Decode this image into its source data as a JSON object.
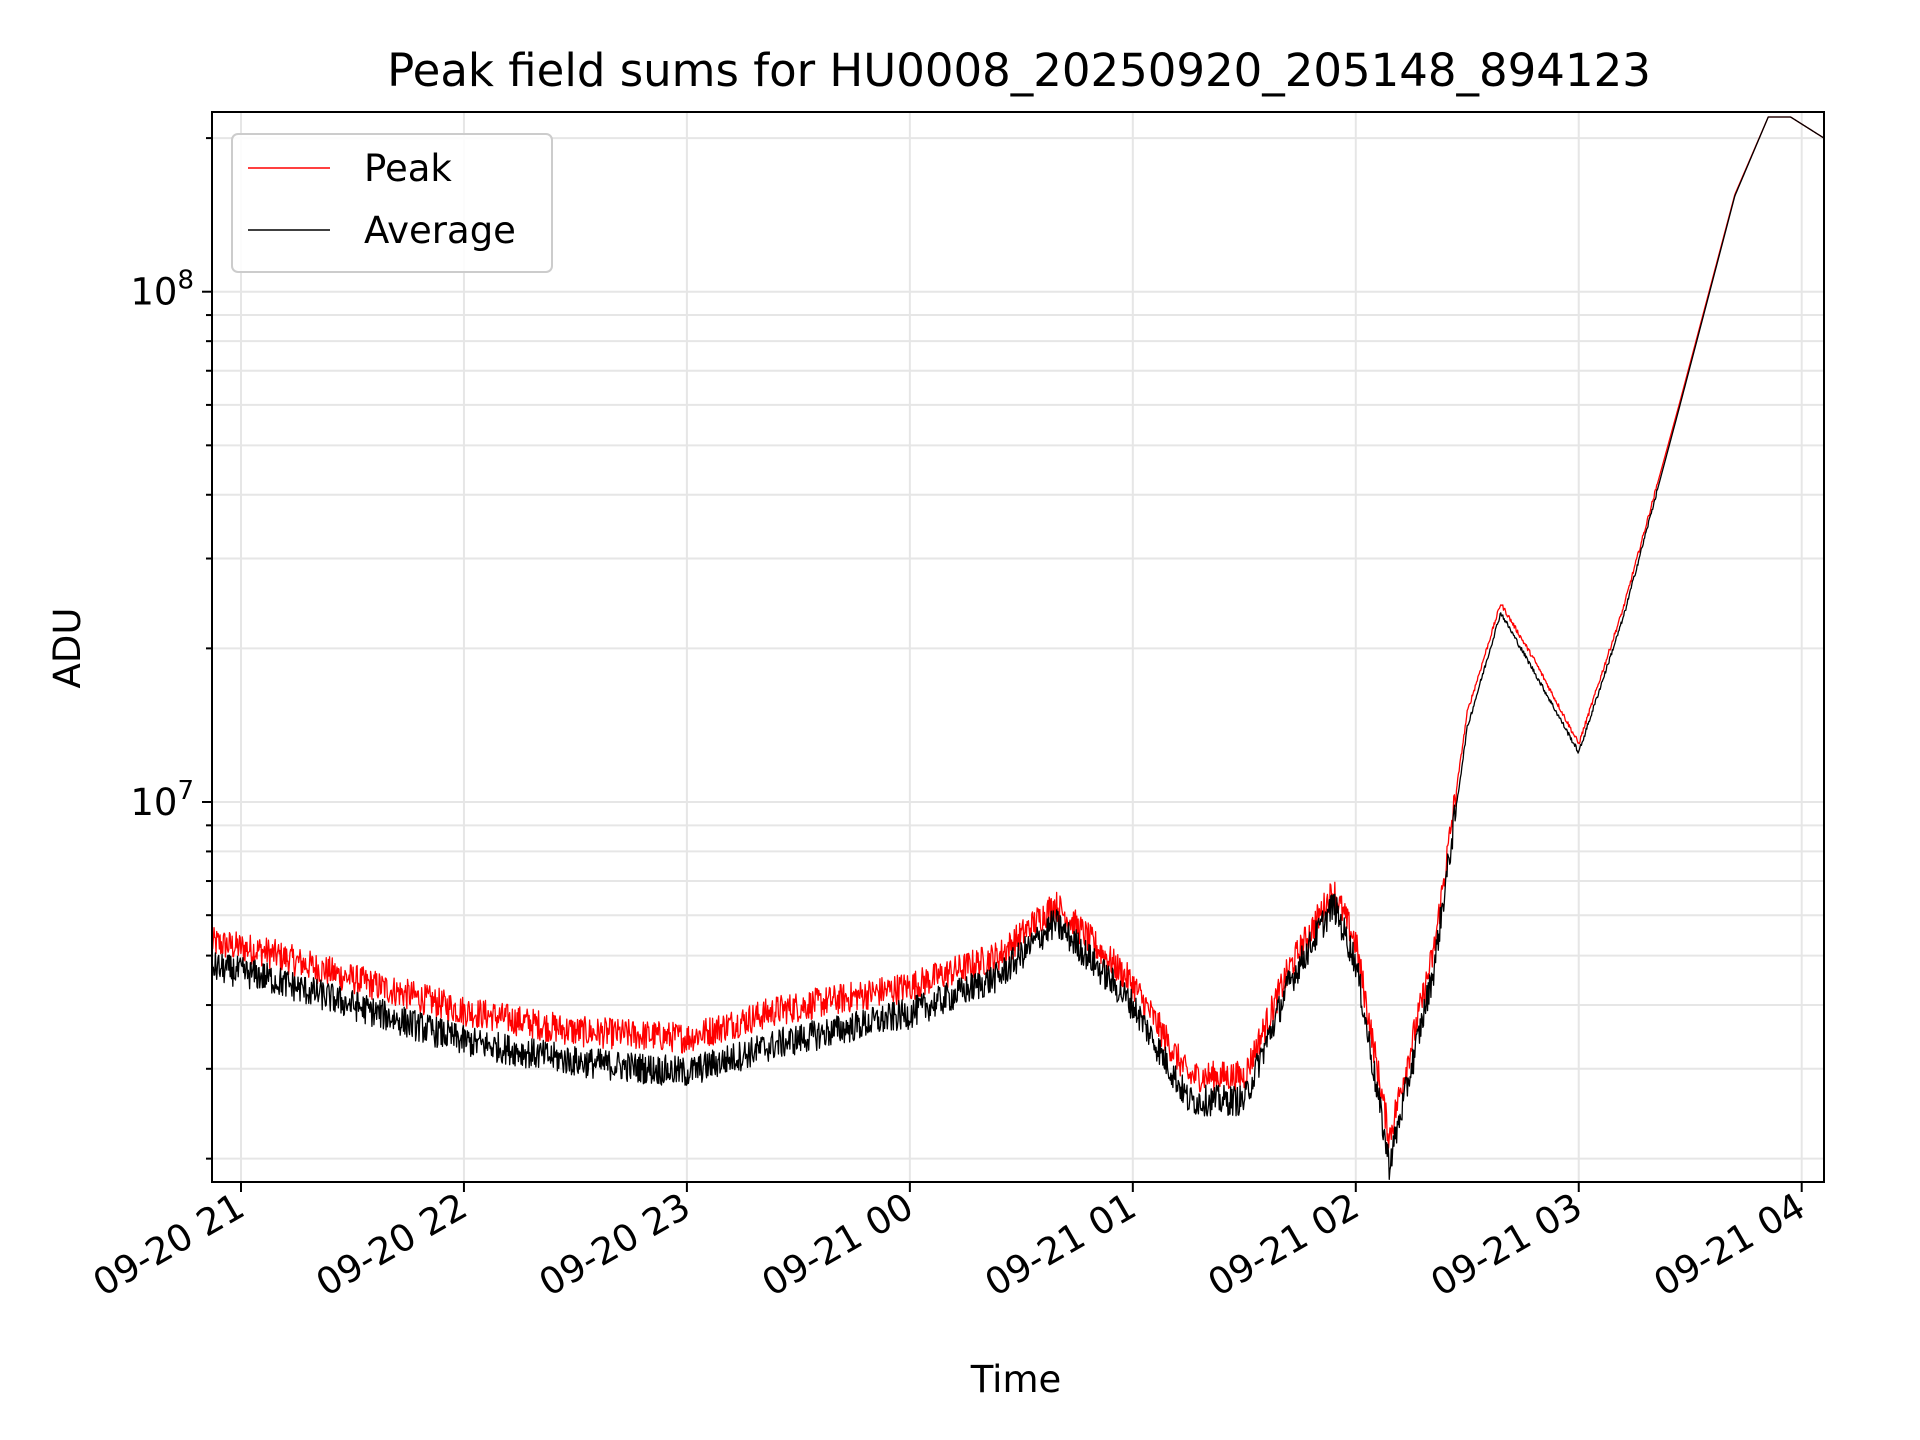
{
  "chart_data": {
    "type": "line",
    "title": "Peak field sums for HU0008_20250920_205148_894123",
    "xlabel": "Time",
    "ylabel": "ADU",
    "yscale": "log",
    "ylim": [
      1800000,
      225000000
    ],
    "xlim_hours": [
      -0.13,
      7.1
    ],
    "grid": true,
    "legend_position": "upper left",
    "x_ticks": [
      {
        "label": "09-20 21",
        "hours": 0
      },
      {
        "label": "09-20 22",
        "hours": 1
      },
      {
        "label": "09-20 23",
        "hours": 2
      },
      {
        "label": "09-21 00",
        "hours": 3
      },
      {
        "label": "09-21 01",
        "hours": 4
      },
      {
        "label": "09-21 02",
        "hours": 5
      },
      {
        "label": "09-21 03",
        "hours": 6
      },
      {
        "label": "09-21 04",
        "hours": 7
      }
    ],
    "y_ticks": [
      {
        "base": "10",
        "exp": "7",
        "value": 10000000
      },
      {
        "base": "10",
        "exp": "8",
        "value": 100000000
      }
    ],
    "series": [
      {
        "name": "Peak",
        "color": "#ff0000",
        "noise_amp": 0.07,
        "x_hours": [
          -0.13,
          0.1,
          0.5,
          1.0,
          1.5,
          2.0,
          2.4,
          3.0,
          3.4,
          3.65,
          3.75,
          4.0,
          4.25,
          4.5,
          4.7,
          4.9,
          5.0,
          5.15,
          5.35,
          5.5,
          5.65,
          5.8,
          6.0,
          6.2,
          6.45,
          6.7,
          6.85,
          6.95,
          7.1
        ],
        "y_values": [
          5300000,
          5100000,
          4500000,
          3900000,
          3550000,
          3450000,
          3900000,
          4350000,
          5000000,
          6300000,
          5700000,
          4400000,
          2900000,
          2900000,
          4700000,
          6700000,
          5300000,
          2200000,
          5100000,
          15000000,
          24500000,
          19000000,
          13000000,
          24000000,
          60000000,
          155000000,
          220000000,
          220000000,
          200000000
        ]
      },
      {
        "name": "Average",
        "color": "#000000",
        "noise_amp": 0.07,
        "x_hours": [
          -0.13,
          0.1,
          0.5,
          1.0,
          1.5,
          2.0,
          2.4,
          3.0,
          3.4,
          3.65,
          3.75,
          4.0,
          4.25,
          4.5,
          4.7,
          4.9,
          5.0,
          5.15,
          5.35,
          5.5,
          5.65,
          5.8,
          6.0,
          6.2,
          6.45,
          6.7,
          6.85,
          6.95,
          7.1
        ],
        "y_values": [
          4750000,
          4550000,
          4000000,
          3400000,
          3100000,
          2950000,
          3350000,
          3850000,
          4550000,
          5800000,
          5250000,
          4000000,
          2600000,
          2600000,
          4400000,
          6300000,
          4850000,
          1950000,
          4700000,
          14000000,
          23500000,
          18000000,
          12500000,
          23000000,
          59000000,
          154000000,
          220000000,
          220000000,
          200000000
        ]
      }
    ]
  }
}
